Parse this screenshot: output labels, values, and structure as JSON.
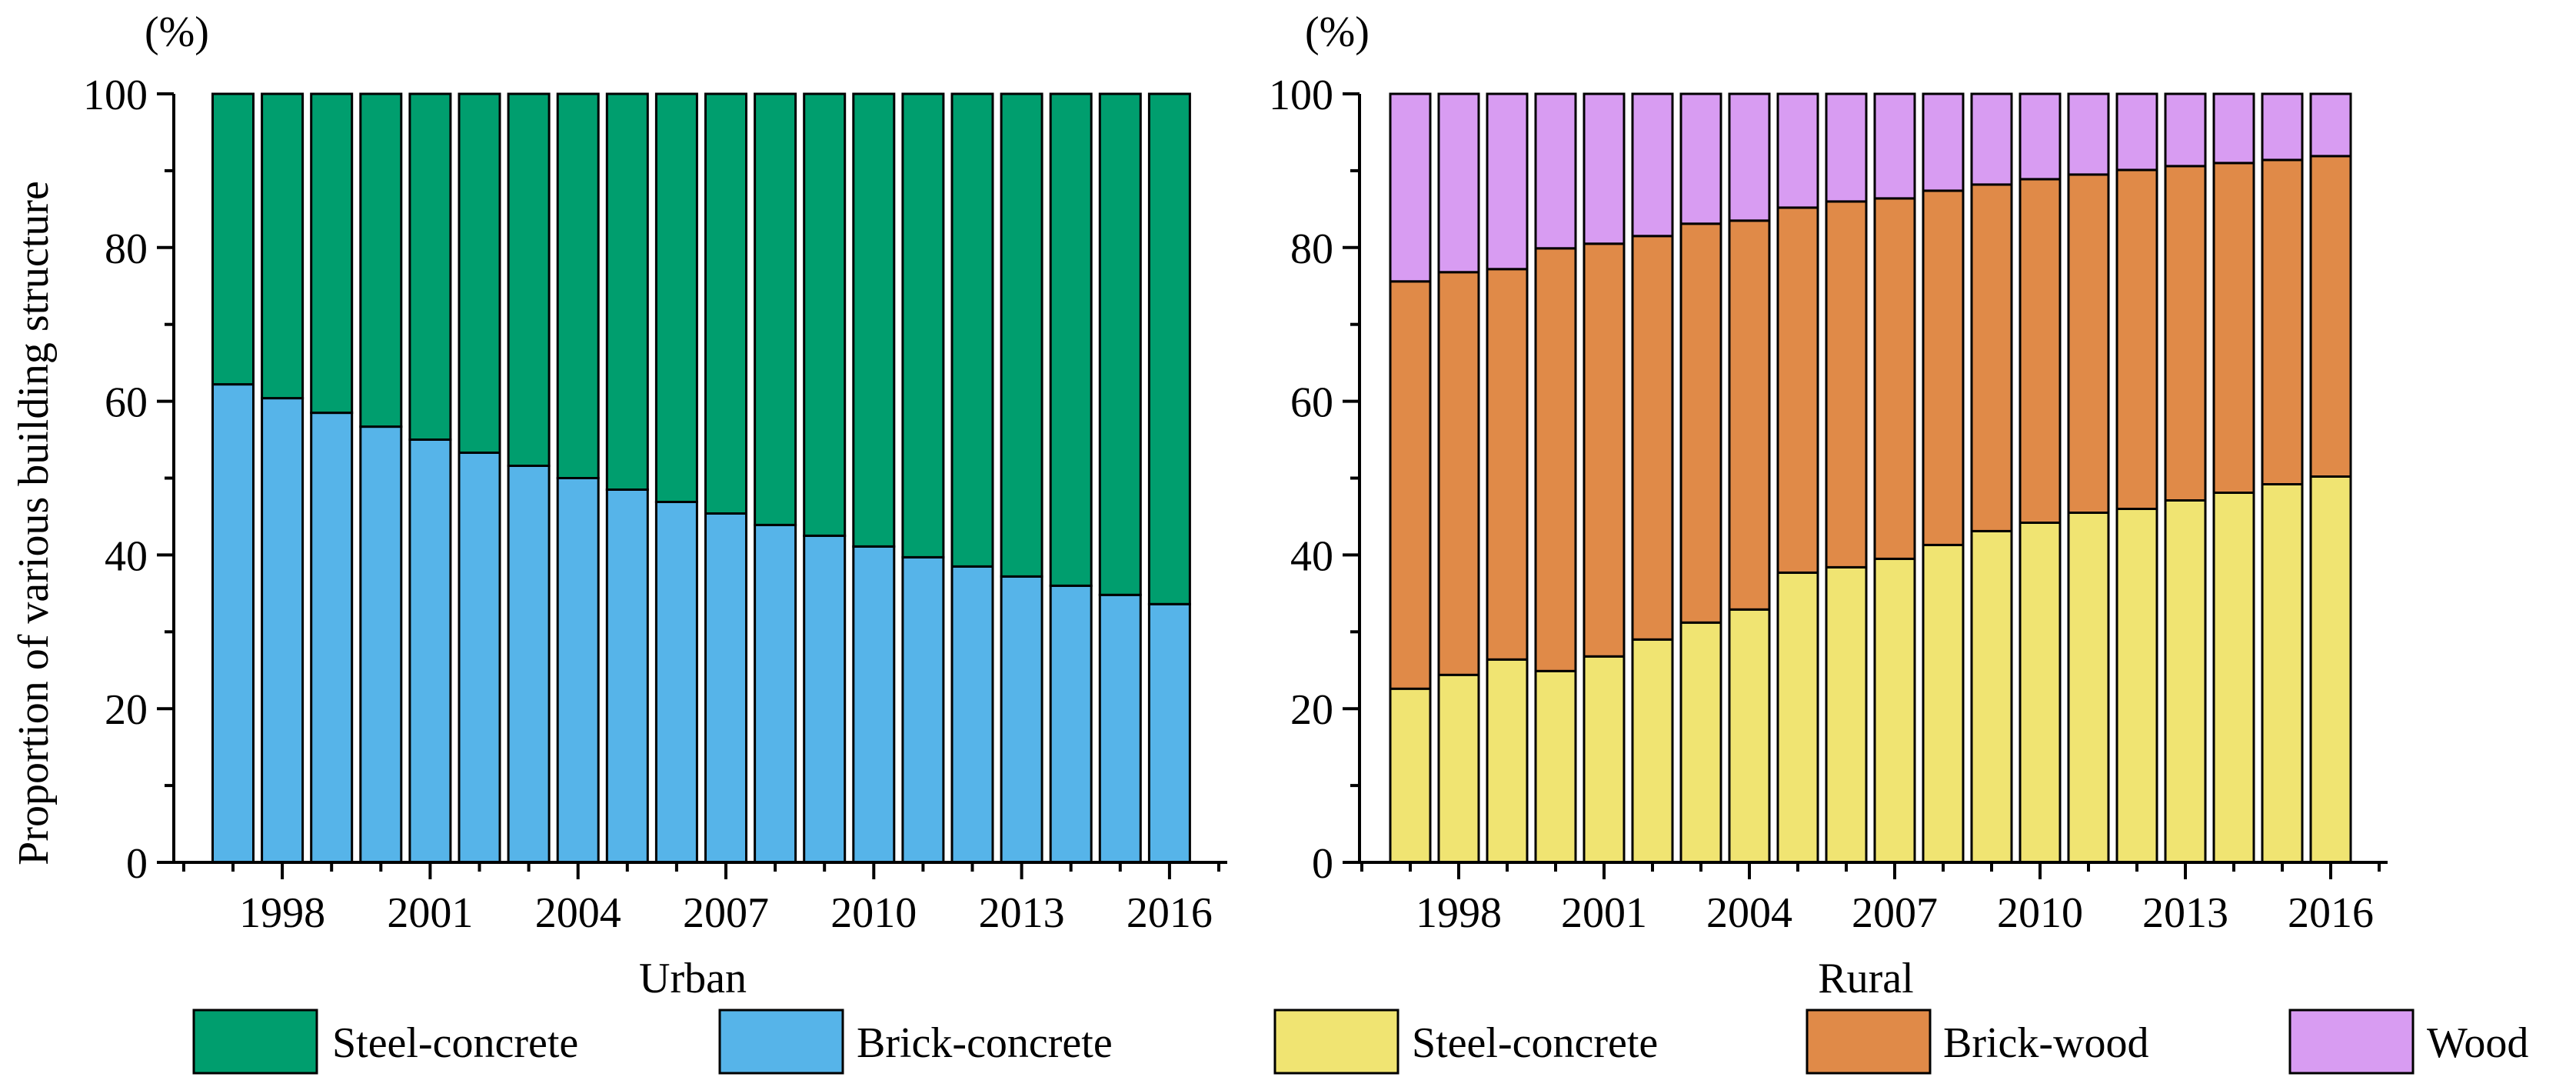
{
  "figure": {
    "ylabel": "Proportion of various  building structure",
    "unit": "(%)"
  },
  "legend": [
    {
      "label": "Steel-concrete",
      "color": "#009e6e"
    },
    {
      "label": "Brick-concrete",
      "color": "#56b4e9"
    },
    {
      "label": "Steel-concrete",
      "color": "#f0e472"
    },
    {
      "label": "Brick-wood",
      "color": "#e08a48"
    },
    {
      "label": "Wood",
      "color": "#d89cf2"
    }
  ],
  "chart_data": [
    {
      "type": "bar",
      "stacked": true,
      "title": "",
      "xlabel": "Urban",
      "ylabel": "Proportion of various  building structure",
      "ylim": [
        0,
        100
      ],
      "yticks": [
        0,
        20,
        40,
        60,
        80,
        100
      ],
      "xtick_labels": [
        "1998",
        "2001",
        "2004",
        "2007",
        "2010",
        "2013",
        "2016"
      ],
      "categories": [
        "1997",
        "1998",
        "1999",
        "2000",
        "2001",
        "2002",
        "2003",
        "2004",
        "2005",
        "2006",
        "2007",
        "2008",
        "2009",
        "2010",
        "2011",
        "2012",
        "2013",
        "2014",
        "2015",
        "2016"
      ],
      "series": [
        {
          "name": "Brick-concrete",
          "color": "#56b4e9",
          "values": [
            62.2,
            60.4,
            58.5,
            56.7,
            55.0,
            53.3,
            51.6,
            50.0,
            48.5,
            46.9,
            45.4,
            43.9,
            42.5,
            41.1,
            39.7,
            38.5,
            37.2,
            36.0,
            34.8,
            33.6
          ]
        },
        {
          "name": "Steel-concrete",
          "color": "#009e6e",
          "values": [
            37.8,
            39.6,
            41.5,
            43.3,
            45.0,
            46.7,
            48.4,
            50.0,
            51.5,
            53.1,
            54.6,
            56.1,
            57.5,
            58.9,
            60.3,
            61.5,
            62.8,
            64.0,
            65.2,
            66.4
          ]
        }
      ]
    },
    {
      "type": "bar",
      "stacked": true,
      "title": "",
      "xlabel": "Rural",
      "ylabel": "",
      "ylim": [
        0,
        100
      ],
      "yticks": [
        0,
        20,
        40,
        60,
        80,
        100
      ],
      "xtick_labels": [
        "1998",
        "2001",
        "2004",
        "2007",
        "2010",
        "2013",
        "2016"
      ],
      "categories": [
        "1997",
        "1998",
        "1999",
        "2000",
        "2001",
        "2002",
        "2003",
        "2004",
        "2005",
        "2006",
        "2007",
        "2008",
        "2009",
        "2010",
        "2011",
        "2012",
        "2013",
        "2014",
        "2015",
        "2016"
      ],
      "series": [
        {
          "name": "Steel-concrete",
          "color": "#f0e472",
          "values": [
            22.6,
            24.4,
            26.4,
            24.9,
            26.8,
            29.0,
            31.2,
            32.9,
            37.7,
            38.4,
            39.5,
            41.3,
            43.1,
            44.2,
            45.5,
            46.0,
            47.1,
            48.1,
            49.2,
            50.2
          ]
        },
        {
          "name": "Brick-wood",
          "color": "#e08a48",
          "values": [
            53.0,
            52.4,
            50.8,
            55.0,
            53.7,
            52.5,
            51.9,
            50.6,
            47.5,
            47.6,
            46.9,
            46.1,
            45.1,
            44.7,
            44.0,
            44.1,
            43.5,
            42.9,
            42.2,
            41.7
          ]
        },
        {
          "name": "Wood",
          "color": "#d89cf2",
          "values": [
            24.4,
            23.2,
            22.8,
            20.1,
            19.5,
            18.5,
            16.9,
            16.5,
            14.8,
            14.0,
            13.6,
            12.6,
            11.8,
            11.1,
            10.5,
            9.9,
            9.4,
            9.0,
            8.6,
            8.1
          ]
        }
      ]
    }
  ]
}
